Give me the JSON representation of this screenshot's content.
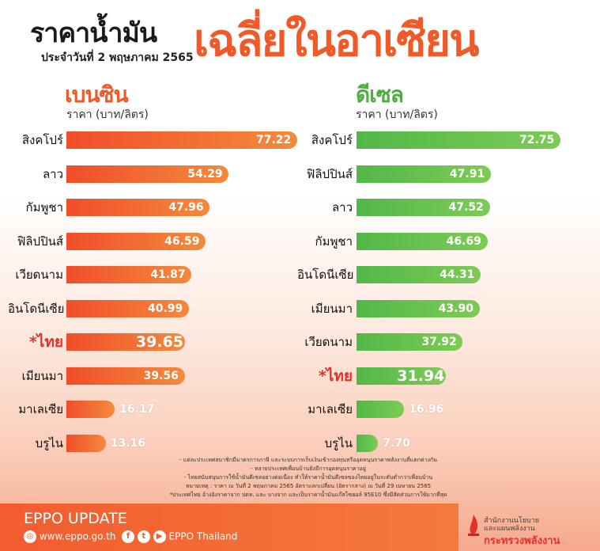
{
  "title": {
    "line1": "ราคาน้ำมัน",
    "line2": "ประจำวันที่ 2 พฤษภาคม 2565",
    "big": "เฉลี่ยในอาเซียน"
  },
  "colors": {
    "petrol": "#f05a28",
    "diesel": "#4caf3f",
    "highlight": "#e4312b"
  },
  "chart_data": [
    {
      "type": "bar",
      "title": "เบนซิน",
      "ylabel": "ราคา (บาท/ลิตร)",
      "categories": [
        "สิงคโปร์",
        "ลาว",
        "กัมพูชา",
        "ฟิลิปปินส์",
        "เวียดนาม",
        "อินโดนีเซีย",
        "*ไทย",
        "เมียนมา",
        "มาเลเซีย",
        "บรูไน"
      ],
      "values": [
        77.22,
        54.29,
        47.96,
        46.59,
        41.87,
        40.99,
        39.65,
        39.56,
        16.17,
        13.16
      ],
      "value_labels": [
        "77.22",
        "54.29",
        "47.96",
        "46.59",
        "41.87",
        "40.99",
        "39.65",
        "39.56",
        "16.17",
        "13.16"
      ],
      "highlight_index": 6
    },
    {
      "type": "bar",
      "title": "ดีเซล",
      "ylabel": "ราคา (บาท/ลิตร)",
      "categories": [
        "สิงคโปร์",
        "ฟิลิปปินส์",
        "ลาว",
        "กัมพูชา",
        "อินโดนีเซีย",
        "เมียนมา",
        "เวียดนาม",
        "*ไทย",
        "มาเลเซีย",
        "บรูไน"
      ],
      "values": [
        72.75,
        47.91,
        47.52,
        46.69,
        44.31,
        43.9,
        37.92,
        31.94,
        16.96,
        7.7
      ],
      "value_labels": [
        "72.75",
        "47.91",
        "47.52",
        "46.69",
        "44.31",
        "43.90",
        "37.92",
        "31.94",
        "16.96",
        "7.70"
      ],
      "highlight_index": 7
    }
  ],
  "notes": [
    "- แต่ละประเทศสมาชิกมีมาตรการภาษี และระบบการเก็บเงินเข้ากองทุนหรืออุดหนุนราคาพลังงานที่แตกต่างกัน",
    "- หลายประเทศเพื่อนบ้านยังมีการอุดหนุนราคาอยู่",
    "- ไทยสนับสนุนการใช้น้ำมันดีเซลอย่างต่อเนื่อง ทำให้ราคาน้ำมันดีเซลของไทยอยู่ในระดับต่ำกว่าเพื่อนบ้าน",
    "หมายเหตุ : ราคา ณ วันที่ 2 พฤษภาคม 2565 อัตราแลกเปลี่ยน (อัตรากลาง) ณ วันที่ 29 เมษายน 2565",
    "*ประเทศไทย อ้างอิงราคาจาก ปตท. และ บางจาก และเป็นราคาน้ำมันแก๊สโซฮอล์ 95E10 ซึ่งมีสัดส่วนการใช้มากที่สุด"
  ],
  "footer": {
    "title": "EPPO UPDATE",
    "website": "www.eppo.go.th",
    "social": "EPPO Thailand",
    "logo_line1": "สำนักงานนโยบาย",
    "logo_line2": "และแผนพลังงาน",
    "logo_line3": "กระทรวงพลังงาน",
    "icons": [
      "globe-icon",
      "facebook-icon",
      "twitter-icon",
      "youtube-icon"
    ]
  }
}
